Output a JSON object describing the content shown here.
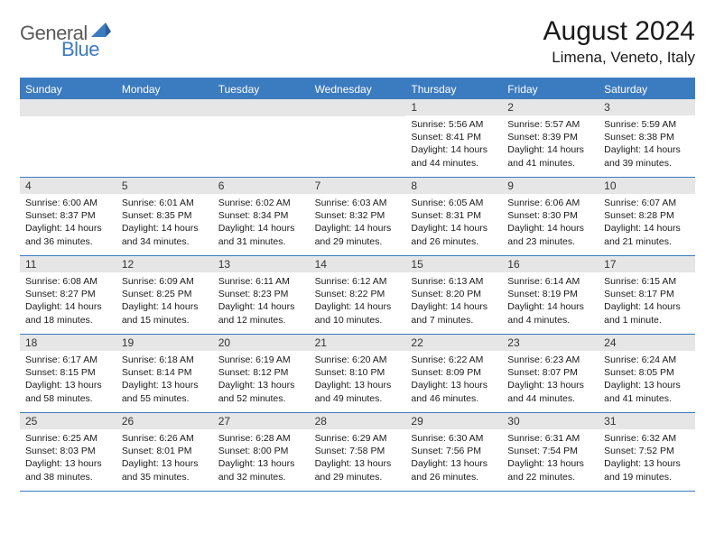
{
  "logo": {
    "general": "General",
    "blue": "Blue"
  },
  "title": "August 2024",
  "location": "Limena, Veneto, Italy",
  "colors": {
    "accent": "#3b7bbf",
    "dayBar": "#e6e6e6",
    "text": "#1a1a1a",
    "logoGray": "#5a5a5a"
  },
  "weekdays": [
    "Sunday",
    "Monday",
    "Tuesday",
    "Wednesday",
    "Thursday",
    "Friday",
    "Saturday"
  ],
  "weeks": [
    [
      {
        "blank": true
      },
      {
        "blank": true
      },
      {
        "blank": true
      },
      {
        "blank": true
      },
      {
        "n": "1",
        "sr": "Sunrise: 5:56 AM",
        "ss": "Sunset: 8:41 PM",
        "d1": "Daylight: 14 hours",
        "d2": "and 44 minutes."
      },
      {
        "n": "2",
        "sr": "Sunrise: 5:57 AM",
        "ss": "Sunset: 8:39 PM",
        "d1": "Daylight: 14 hours",
        "d2": "and 41 minutes."
      },
      {
        "n": "3",
        "sr": "Sunrise: 5:59 AM",
        "ss": "Sunset: 8:38 PM",
        "d1": "Daylight: 14 hours",
        "d2": "and 39 minutes."
      }
    ],
    [
      {
        "n": "4",
        "sr": "Sunrise: 6:00 AM",
        "ss": "Sunset: 8:37 PM",
        "d1": "Daylight: 14 hours",
        "d2": "and 36 minutes."
      },
      {
        "n": "5",
        "sr": "Sunrise: 6:01 AM",
        "ss": "Sunset: 8:35 PM",
        "d1": "Daylight: 14 hours",
        "d2": "and 34 minutes."
      },
      {
        "n": "6",
        "sr": "Sunrise: 6:02 AM",
        "ss": "Sunset: 8:34 PM",
        "d1": "Daylight: 14 hours",
        "d2": "and 31 minutes."
      },
      {
        "n": "7",
        "sr": "Sunrise: 6:03 AM",
        "ss": "Sunset: 8:32 PM",
        "d1": "Daylight: 14 hours",
        "d2": "and 29 minutes."
      },
      {
        "n": "8",
        "sr": "Sunrise: 6:05 AM",
        "ss": "Sunset: 8:31 PM",
        "d1": "Daylight: 14 hours",
        "d2": "and 26 minutes."
      },
      {
        "n": "9",
        "sr": "Sunrise: 6:06 AM",
        "ss": "Sunset: 8:30 PM",
        "d1": "Daylight: 14 hours",
        "d2": "and 23 minutes."
      },
      {
        "n": "10",
        "sr": "Sunrise: 6:07 AM",
        "ss": "Sunset: 8:28 PM",
        "d1": "Daylight: 14 hours",
        "d2": "and 21 minutes."
      }
    ],
    [
      {
        "n": "11",
        "sr": "Sunrise: 6:08 AM",
        "ss": "Sunset: 8:27 PM",
        "d1": "Daylight: 14 hours",
        "d2": "and 18 minutes."
      },
      {
        "n": "12",
        "sr": "Sunrise: 6:09 AM",
        "ss": "Sunset: 8:25 PM",
        "d1": "Daylight: 14 hours",
        "d2": "and 15 minutes."
      },
      {
        "n": "13",
        "sr": "Sunrise: 6:11 AM",
        "ss": "Sunset: 8:23 PM",
        "d1": "Daylight: 14 hours",
        "d2": "and 12 minutes."
      },
      {
        "n": "14",
        "sr": "Sunrise: 6:12 AM",
        "ss": "Sunset: 8:22 PM",
        "d1": "Daylight: 14 hours",
        "d2": "and 10 minutes."
      },
      {
        "n": "15",
        "sr": "Sunrise: 6:13 AM",
        "ss": "Sunset: 8:20 PM",
        "d1": "Daylight: 14 hours",
        "d2": "and 7 minutes."
      },
      {
        "n": "16",
        "sr": "Sunrise: 6:14 AM",
        "ss": "Sunset: 8:19 PM",
        "d1": "Daylight: 14 hours",
        "d2": "and 4 minutes."
      },
      {
        "n": "17",
        "sr": "Sunrise: 6:15 AM",
        "ss": "Sunset: 8:17 PM",
        "d1": "Daylight: 14 hours",
        "d2": "and 1 minute."
      }
    ],
    [
      {
        "n": "18",
        "sr": "Sunrise: 6:17 AM",
        "ss": "Sunset: 8:15 PM",
        "d1": "Daylight: 13 hours",
        "d2": "and 58 minutes."
      },
      {
        "n": "19",
        "sr": "Sunrise: 6:18 AM",
        "ss": "Sunset: 8:14 PM",
        "d1": "Daylight: 13 hours",
        "d2": "and 55 minutes."
      },
      {
        "n": "20",
        "sr": "Sunrise: 6:19 AM",
        "ss": "Sunset: 8:12 PM",
        "d1": "Daylight: 13 hours",
        "d2": "and 52 minutes."
      },
      {
        "n": "21",
        "sr": "Sunrise: 6:20 AM",
        "ss": "Sunset: 8:10 PM",
        "d1": "Daylight: 13 hours",
        "d2": "and 49 minutes."
      },
      {
        "n": "22",
        "sr": "Sunrise: 6:22 AM",
        "ss": "Sunset: 8:09 PM",
        "d1": "Daylight: 13 hours",
        "d2": "and 46 minutes."
      },
      {
        "n": "23",
        "sr": "Sunrise: 6:23 AM",
        "ss": "Sunset: 8:07 PM",
        "d1": "Daylight: 13 hours",
        "d2": "and 44 minutes."
      },
      {
        "n": "24",
        "sr": "Sunrise: 6:24 AM",
        "ss": "Sunset: 8:05 PM",
        "d1": "Daylight: 13 hours",
        "d2": "and 41 minutes."
      }
    ],
    [
      {
        "n": "25",
        "sr": "Sunrise: 6:25 AM",
        "ss": "Sunset: 8:03 PM",
        "d1": "Daylight: 13 hours",
        "d2": "and 38 minutes."
      },
      {
        "n": "26",
        "sr": "Sunrise: 6:26 AM",
        "ss": "Sunset: 8:01 PM",
        "d1": "Daylight: 13 hours",
        "d2": "and 35 minutes."
      },
      {
        "n": "27",
        "sr": "Sunrise: 6:28 AM",
        "ss": "Sunset: 8:00 PM",
        "d1": "Daylight: 13 hours",
        "d2": "and 32 minutes."
      },
      {
        "n": "28",
        "sr": "Sunrise: 6:29 AM",
        "ss": "Sunset: 7:58 PM",
        "d1": "Daylight: 13 hours",
        "d2": "and 29 minutes."
      },
      {
        "n": "29",
        "sr": "Sunrise: 6:30 AM",
        "ss": "Sunset: 7:56 PM",
        "d1": "Daylight: 13 hours",
        "d2": "and 26 minutes."
      },
      {
        "n": "30",
        "sr": "Sunrise: 6:31 AM",
        "ss": "Sunset: 7:54 PM",
        "d1": "Daylight: 13 hours",
        "d2": "and 22 minutes."
      },
      {
        "n": "31",
        "sr": "Sunrise: 6:32 AM",
        "ss": "Sunset: 7:52 PM",
        "d1": "Daylight: 13 hours",
        "d2": "and 19 minutes."
      }
    ]
  ]
}
